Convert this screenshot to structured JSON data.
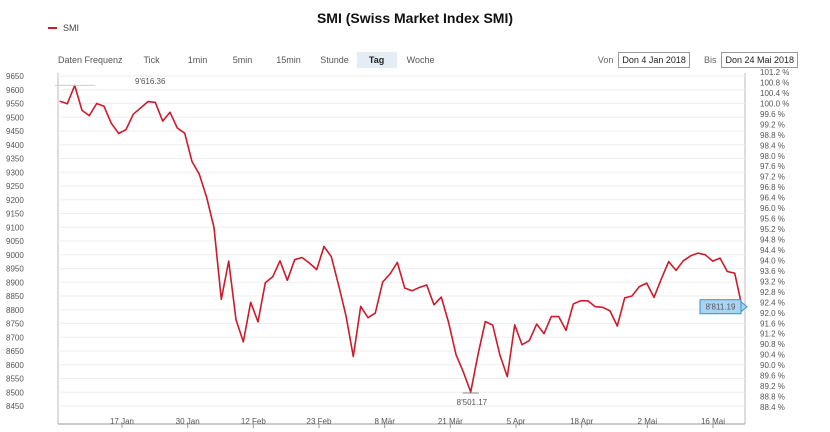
{
  "title": "SMI (Swiss Market Index SMI)",
  "legend": {
    "label": "SMI",
    "color": "#cc1b2c"
  },
  "toolbar": {
    "label": "Daten Frequenz",
    "timeframes": [
      "Tick",
      "1min",
      "5min",
      "15min",
      "Stunde",
      "Tag",
      "Woche"
    ],
    "active": "Tag"
  },
  "date_range": {
    "from_label": "Von",
    "from": "Don 4 Jan 2018",
    "to_label": "Bis",
    "to": "Don 24 Mai 2018"
  },
  "annotations": {
    "high": "9'616.36",
    "low": "8'501.17",
    "last": "8'811.19"
  },
  "chart_data": {
    "type": "line",
    "y_ticks": [
      9650,
      9600,
      9550,
      9500,
      9450,
      9400,
      9350,
      9300,
      9250,
      9200,
      9150,
      9100,
      9050,
      9000,
      8950,
      8900,
      8850,
      8800,
      8750,
      8700,
      8650,
      8600,
      8550,
      8500,
      8450
    ],
    "y_range": [
      8450,
      9650
    ],
    "y2_ticks": [
      "101.2 %",
      "100.8 %",
      "100.4 %",
      "100.0 %",
      "99.6 %",
      "99.2 %",
      "98.8 %",
      "98.4 %",
      "98.0 %",
      "97.6 %",
      "97.2 %",
      "96.8 %",
      "96.4 %",
      "96.0 %",
      "95.6 %",
      "95.2 %",
      "94.8 %",
      "94.4 %",
      "94.0 %",
      "93.6 %",
      "93.2 %",
      "92.8 %",
      "92.4 %",
      "92.0 %",
      "91.6 %",
      "91.2 %",
      "90.8 %",
      "90.4 %",
      "90.0 %",
      "89.6 %",
      "89.2 %",
      "88.8 %",
      "88.4 %"
    ],
    "x_tick_labels": [
      "17 Jan",
      "30 Jan",
      "12 Feb",
      "23 Feb",
      "8 Mär",
      "21 Mär",
      "5 Apr",
      "18 Apr",
      "2 Mai",
      "16 Mai"
    ],
    "series": [
      {
        "values": [
          9558,
          9549,
          9616,
          9525,
          9506,
          9550,
          9540,
          9478,
          9441,
          9455,
          9511,
          9534,
          9557,
          9554,
          9486,
          9518,
          9461,
          9442,
          9339,
          9293,
          9208,
          9099,
          8838,
          8977,
          8764,
          8683,
          8827,
          8756,
          8898,
          8920,
          8978,
          8907,
          8982,
          8990,
          8970,
          8946,
          9030,
          8993,
          8888,
          8778,
          8630,
          8812,
          8771,
          8788,
          8901,
          8930,
          8972,
          8879,
          8869,
          8881,
          8890,
          8818,
          8846,
          8752,
          8637,
          8574,
          8501,
          8637,
          8757,
          8744,
          8634,
          8557,
          8745,
          8673,
          8688,
          8748,
          8713,
          8775,
          8775,
          8725,
          8821,
          8833,
          8832,
          8811,
          8809,
          8796,
          8741,
          8843,
          8850,
          8884,
          8897,
          8845,
          8912,
          8975,
          8943,
          8978,
          8996,
          9006,
          9000,
          8977,
          8988,
          8939,
          8933,
          8811
        ]
      }
    ]
  }
}
